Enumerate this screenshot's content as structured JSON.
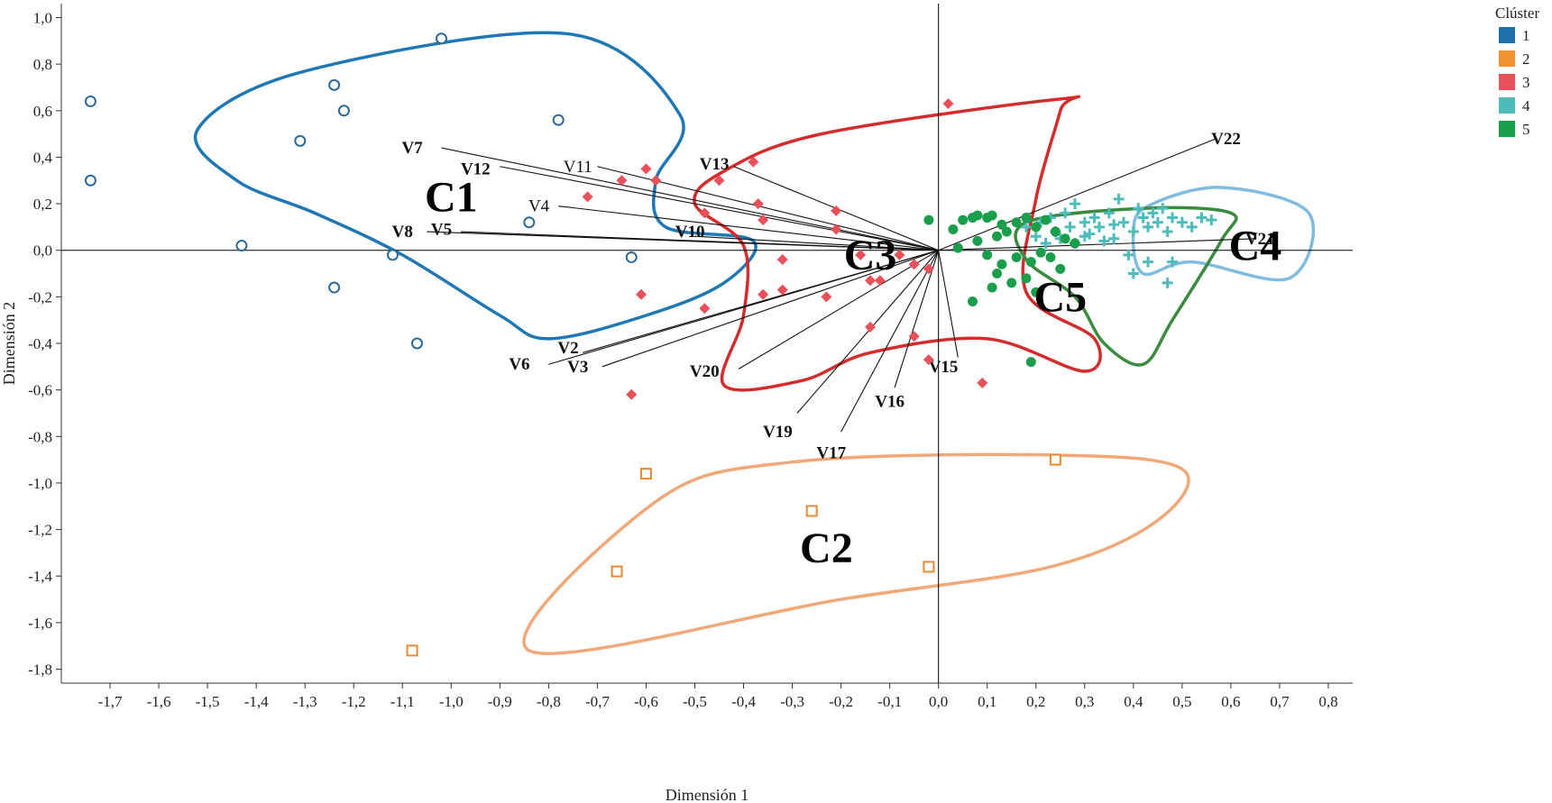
{
  "chart_data": {
    "type": "scatter",
    "xlabel": "Dimensión 1",
    "ylabel": "Dimensión 2",
    "xlim": [
      -1.8,
      0.85
    ],
    "ylim": [
      -1.86,
      1.06
    ],
    "xticks": [
      -1.7,
      -1.6,
      -1.5,
      -1.4,
      -1.3,
      -1.2,
      -1.1,
      -1.0,
      -0.9,
      -0.8,
      -0.7,
      -0.6,
      -0.5,
      -0.4,
      -0.3,
      -0.2,
      -0.1,
      0.0,
      0.1,
      0.2,
      0.3,
      0.4,
      0.5,
      0.6,
      0.7,
      0.8
    ],
    "xtick_labels": [
      "-1,7",
      "-1,6",
      "-1,5",
      "-1,4",
      "-1,3",
      "-1,2",
      "-1,1",
      "-1,0",
      "-0,9",
      "-0,8",
      "-0,7",
      "-0,6",
      "-0,5",
      "-0,4",
      "-0,3",
      "-0,2",
      "-0,1",
      "0,0",
      "0,1",
      "0,2",
      "0,3",
      "0,4",
      "0,5",
      "0,6",
      "0,7",
      "0,8"
    ],
    "yticks": [
      1.0,
      0.8,
      0.6,
      0.4,
      0.2,
      0.0,
      -0.2,
      -0.4,
      -0.6,
      -0.8,
      -1.0,
      -1.2,
      -1.4,
      -1.6,
      -1.8
    ],
    "ytick_labels": [
      "1,0",
      "0,8",
      "0,6",
      "0,4",
      "0,2",
      "0,0",
      "-0,2",
      "-0,4",
      "-0,6",
      "-0,8",
      "-1,0",
      "-1,2",
      "-1,4",
      "-1,6",
      "-1,8"
    ],
    "legend": {
      "title": "Clúster",
      "position": "top-right",
      "entries": [
        {
          "label": "1",
          "color": "#1f6fa8"
        },
        {
          "label": "2",
          "color": "#f0922e"
        },
        {
          "label": "3",
          "color": "#e8505a"
        },
        {
          "label": "4",
          "color": "#4fbcbc"
        },
        {
          "label": "5",
          "color": "#1a9e4b"
        }
      ]
    },
    "series": [
      {
        "name": "1",
        "marker": "circle-open",
        "color": "#2b6a99",
        "points": [
          [
            -1.74,
            0.64
          ],
          [
            -1.74,
            0.3
          ],
          [
            -1.02,
            0.91
          ],
          [
            -1.24,
            0.71
          ],
          [
            -1.22,
            0.6
          ],
          [
            -1.31,
            0.47
          ],
          [
            -0.78,
            0.56
          ],
          [
            -0.84,
            0.12
          ],
          [
            -1.43,
            0.02
          ],
          [
            -1.12,
            -0.02
          ],
          [
            -0.63,
            -0.03
          ],
          [
            -1.24,
            -0.16
          ],
          [
            -1.07,
            -0.4
          ]
        ]
      },
      {
        "name": "2",
        "marker": "square-open",
        "color": "#e88a33",
        "points": [
          [
            -0.6,
            -0.96
          ],
          [
            -0.26,
            -1.12
          ],
          [
            0.24,
            -0.9
          ],
          [
            -0.66,
            -1.38
          ],
          [
            -0.02,
            -1.36
          ],
          [
            -1.08,
            -1.72
          ]
        ]
      },
      {
        "name": "3",
        "marker": "diamond",
        "color": "#e8505a",
        "points": [
          [
            0.02,
            0.63
          ],
          [
            -0.38,
            0.38
          ],
          [
            -0.6,
            0.35
          ],
          [
            -0.65,
            0.3
          ],
          [
            -0.58,
            0.3
          ],
          [
            -0.45,
            0.3
          ],
          [
            -0.72,
            0.23
          ],
          [
            -0.37,
            0.2
          ],
          [
            -0.21,
            0.17
          ],
          [
            -0.48,
            0.16
          ],
          [
            -0.36,
            0.13
          ],
          [
            -0.21,
            0.09
          ],
          [
            -0.32,
            -0.04
          ],
          [
            -0.16,
            -0.02
          ],
          [
            -0.08,
            -0.02
          ],
          [
            -0.05,
            -0.06
          ],
          [
            -0.02,
            -0.08
          ],
          [
            -0.61,
            -0.19
          ],
          [
            -0.32,
            -0.17
          ],
          [
            -0.36,
            -0.19
          ],
          [
            -0.23,
            -0.2
          ],
          [
            -0.14,
            -0.13
          ],
          [
            -0.12,
            -0.13
          ],
          [
            -0.48,
            -0.25
          ],
          [
            -0.14,
            -0.33
          ],
          [
            -0.05,
            -0.37
          ],
          [
            -0.02,
            -0.47
          ],
          [
            0.09,
            -0.57
          ],
          [
            -0.63,
            -0.62
          ]
        ]
      },
      {
        "name": "4",
        "marker": "plus",
        "color": "#4fbcbc",
        "points": [
          [
            0.18,
            0.1
          ],
          [
            0.21,
            0.12
          ],
          [
            0.23,
            0.14
          ],
          [
            0.24,
            0.08
          ],
          [
            0.26,
            0.16
          ],
          [
            0.28,
            0.2
          ],
          [
            0.3,
            0.12
          ],
          [
            0.3,
            0.06
          ],
          [
            0.32,
            0.14
          ],
          [
            0.33,
            0.1
          ],
          [
            0.35,
            0.16
          ],
          [
            0.37,
            0.22
          ],
          [
            0.38,
            0.12
          ],
          [
            0.4,
            0.08
          ],
          [
            0.41,
            0.18
          ],
          [
            0.42,
            0.14
          ],
          [
            0.43,
            0.1
          ],
          [
            0.44,
            0.16
          ],
          [
            0.45,
            0.12
          ],
          [
            0.46,
            0.18
          ],
          [
            0.47,
            0.08
          ],
          [
            0.48,
            0.14
          ],
          [
            0.5,
            0.12
          ],
          [
            0.52,
            0.1
          ],
          [
            0.54,
            0.14
          ],
          [
            0.56,
            0.13
          ],
          [
            0.36,
            0.05
          ],
          [
            0.34,
            0.04
          ],
          [
            0.28,
            0.03
          ],
          [
            0.25,
            0.05
          ],
          [
            0.22,
            0.03
          ],
          [
            0.2,
            0.06
          ],
          [
            0.39,
            -0.02
          ],
          [
            0.43,
            -0.05
          ],
          [
            0.48,
            -0.05
          ],
          [
            0.4,
            -0.1
          ],
          [
            0.47,
            -0.14
          ],
          [
            0.31,
            0.07
          ],
          [
            0.27,
            0.1
          ],
          [
            0.36,
            0.11
          ]
        ]
      },
      {
        "name": "5",
        "marker": "circle",
        "color": "#1a9e4b",
        "points": [
          [
            -0.02,
            0.13
          ],
          [
            0.03,
            0.09
          ],
          [
            0.05,
            0.13
          ],
          [
            0.07,
            0.14
          ],
          [
            0.08,
            0.15
          ],
          [
            0.1,
            0.14
          ],
          [
            0.11,
            0.15
          ],
          [
            0.13,
            0.11
          ],
          [
            0.14,
            0.08
          ],
          [
            0.16,
            0.12
          ],
          [
            0.18,
            0.14
          ],
          [
            0.2,
            0.1
          ],
          [
            0.22,
            0.13
          ],
          [
            0.24,
            0.08
          ],
          [
            0.26,
            0.05
          ],
          [
            0.28,
            0.03
          ],
          [
            0.12,
            0.06
          ],
          [
            0.08,
            0.04
          ],
          [
            0.04,
            0.01
          ],
          [
            0.1,
            -0.02
          ],
          [
            0.13,
            -0.06
          ],
          [
            0.16,
            -0.03
          ],
          [
            0.19,
            -0.05
          ],
          [
            0.21,
            -0.01
          ],
          [
            0.23,
            -0.03
          ],
          [
            0.25,
            -0.08
          ],
          [
            0.12,
            -0.1
          ],
          [
            0.15,
            -0.14
          ],
          [
            0.18,
            -0.12
          ],
          [
            0.2,
            -0.18
          ],
          [
            0.11,
            -0.16
          ],
          [
            0.07,
            -0.22
          ],
          [
            0.19,
            -0.48
          ]
        ]
      }
    ],
    "vectors": [
      {
        "name": "V7",
        "end": [
          -1.02,
          0.44
        ],
        "label_at": [
          -1.08,
          0.44
        ]
      },
      {
        "name": "V12",
        "end": [
          -0.9,
          0.36
        ],
        "label_at": [
          -0.95,
          0.35
        ]
      },
      {
        "name": "V11",
        "end": [
          -0.7,
          0.36
        ],
        "label_at": [
          -0.74,
          0.36
        ],
        "plain": true
      },
      {
        "name": "V13",
        "end": [
          -0.42,
          0.36
        ],
        "label_at": [
          -0.46,
          0.37
        ]
      },
      {
        "name": "V4",
        "end": [
          -0.78,
          0.19
        ],
        "label_at": [
          -0.82,
          0.19
        ],
        "plain": true
      },
      {
        "name": "V5",
        "end": [
          -0.98,
          0.08
        ],
        "label_at": [
          -1.02,
          0.09
        ]
      },
      {
        "name": "V8",
        "end": [
          -1.05,
          0.08
        ],
        "label_at": [
          -1.1,
          0.08
        ]
      },
      {
        "name": "V10",
        "end": [
          -0.5,
          0.06
        ],
        "label_at": [
          -0.51,
          0.08
        ]
      },
      {
        "name": "V6",
        "end": [
          -0.8,
          -0.49
        ],
        "label_at": [
          -0.86,
          -0.49
        ]
      },
      {
        "name": "V2",
        "end": [
          -0.73,
          -0.44
        ],
        "label_at": [
          -0.76,
          -0.42
        ]
      },
      {
        "name": "V3",
        "end": [
          -0.69,
          -0.5
        ],
        "label_at": [
          -0.74,
          -0.5
        ]
      },
      {
        "name": "V20",
        "end": [
          -0.41,
          -0.51
        ],
        "label_at": [
          -0.48,
          -0.52
        ]
      },
      {
        "name": "V19",
        "end": [
          -0.29,
          -0.7
        ],
        "label_at": [
          -0.33,
          -0.78
        ]
      },
      {
        "name": "V17",
        "end": [
          -0.2,
          -0.78
        ],
        "label_at": [
          -0.22,
          -0.87
        ]
      },
      {
        "name": "V16",
        "end": [
          -0.09,
          -0.59
        ],
        "label_at": [
          -0.1,
          -0.65
        ]
      },
      {
        "name": "V15",
        "end": [
          0.04,
          -0.46
        ],
        "label_at": [
          0.01,
          -0.5
        ]
      },
      {
        "name": "V22",
        "end": [
          0.57,
          0.48
        ],
        "label_at": [
          0.59,
          0.48
        ]
      },
      {
        "name": "V21",
        "end": [
          0.65,
          0.05
        ],
        "label_at": [
          0.66,
          0.05
        ]
      }
    ],
    "annotations": [
      {
        "text": "C1",
        "at": [
          -1.0,
          0.23
        ]
      },
      {
        "text": "C2",
        "at": [
          -0.23,
          -1.28
        ]
      },
      {
        "text": "C3",
        "at": [
          -0.14,
          -0.02
        ]
      },
      {
        "text": "C4",
        "at": [
          0.65,
          0.02
        ]
      },
      {
        "text": "C5",
        "at": [
          0.25,
          -0.2
        ]
      }
    ],
    "hulls": [
      {
        "cluster": "1",
        "color": "#1f78b4",
        "points": [
          [
            -0.76,
            0.93
          ],
          [
            -1.3,
            0.77
          ],
          [
            -1.52,
            0.52
          ],
          [
            -1.44,
            0.3
          ],
          [
            -1.28,
            0.16
          ],
          [
            -1.1,
            -0.02
          ],
          [
            -0.9,
            -0.28
          ],
          [
            -0.8,
            -0.38
          ],
          [
            -0.6,
            -0.28
          ],
          [
            -0.44,
            -0.14
          ],
          [
            -0.38,
            0.04
          ],
          [
            -0.56,
            0.1
          ],
          [
            -0.58,
            0.3
          ],
          [
            -0.53,
            0.58
          ]
        ]
      },
      {
        "cluster": "2",
        "color": "#f0a878",
        "points": [
          [
            -0.84,
            -1.72
          ],
          [
            -0.58,
            -1.08
          ],
          [
            -0.3,
            -0.91
          ],
          [
            0.24,
            -0.88
          ],
          [
            0.5,
            -0.94
          ],
          [
            0.45,
            -1.16
          ],
          [
            0.23,
            -1.36
          ],
          [
            -0.2,
            -1.5
          ]
        ]
      },
      {
        "cluster": "3",
        "color": "#d42c2c",
        "points": [
          [
            0.25,
            0.65
          ],
          [
            -0.24,
            0.5
          ],
          [
            -0.44,
            0.34
          ],
          [
            -0.5,
            0.2
          ],
          [
            -0.4,
            0.02
          ],
          [
            -0.4,
            -0.28
          ],
          [
            -0.44,
            -0.58
          ],
          [
            -0.28,
            -0.56
          ],
          [
            -0.14,
            -0.44
          ],
          [
            0.1,
            -0.38
          ],
          [
            0.3,
            -0.52
          ],
          [
            0.32,
            -0.38
          ],
          [
            0.18,
            -0.18
          ],
          [
            0.2,
            0.22
          ],
          [
            0.25,
            0.6
          ]
        ]
      },
      {
        "cluster": "4",
        "color": "#7fbce0",
        "points": [
          [
            0.43,
            0.19
          ],
          [
            0.58,
            0.27
          ],
          [
            0.76,
            0.16
          ],
          [
            0.72,
            -0.12
          ],
          [
            0.52,
            -0.05
          ],
          [
            0.42,
            -0.1
          ],
          [
            0.4,
            0.08
          ]
        ]
      },
      {
        "cluster": "5",
        "color": "#3a8a3f",
        "points": [
          [
            0.18,
            0.12
          ],
          [
            0.42,
            0.18
          ],
          [
            0.6,
            0.16
          ],
          [
            0.58,
            0.04
          ],
          [
            0.48,
            -0.3
          ],
          [
            0.42,
            -0.49
          ],
          [
            0.34,
            -0.4
          ],
          [
            0.28,
            -0.2
          ],
          [
            0.18,
            -0.04
          ]
        ]
      }
    ]
  }
}
